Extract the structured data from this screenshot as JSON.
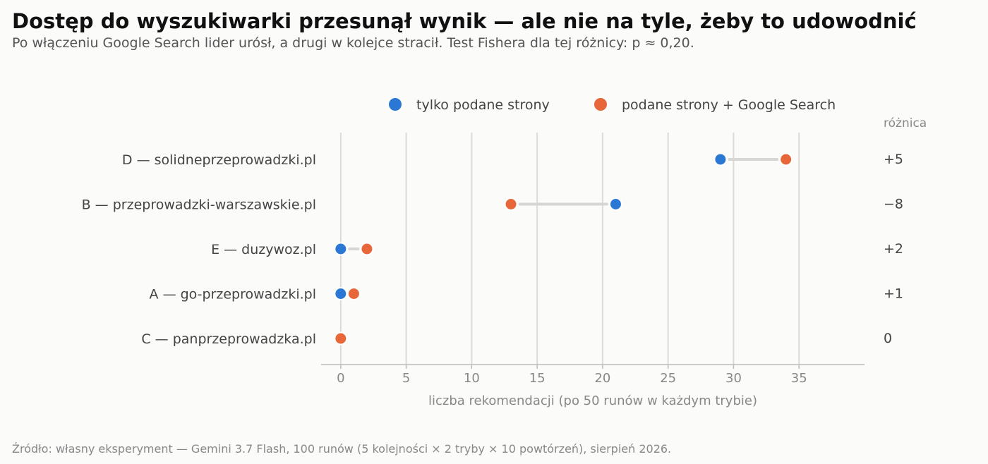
{
  "chart_data": {
    "type": "dumbbell",
    "title": "Dostęp do wyszukiwarki przesunął wynik — ale nie na tyle, żeby to udowodnić",
    "subtitle": "Po włączeniu Google Search lider urósł, a drugi w kolejce stracił. Test Fishera dla tej różnicy: p ≈ 0,20.",
    "xlabel": "liczba rekomendacji (po 50 runów w każdym trybie)",
    "xlim": [
      -1.5,
      40
    ],
    "xticks": [
      0,
      5,
      10,
      15,
      20,
      25,
      30,
      35
    ],
    "grid": true,
    "legend_position": "top-right",
    "series": [
      {
        "name": "tylko podane strony",
        "color": "#2b78d4"
      },
      {
        "name": "podane strony + Google Search",
        "color": "#e8673a"
      }
    ],
    "diff_header": "różnica",
    "categories": [
      {
        "label": "D — solidneprzeprowadzki.pl",
        "values": [
          29,
          34
        ],
        "diff": "+5"
      },
      {
        "label": "B — przeprowadzki-warszawskie.pl",
        "values": [
          21,
          13
        ],
        "diff": "−8"
      },
      {
        "label": "E — duzywoz.pl",
        "values": [
          0,
          2
        ],
        "diff": "+2"
      },
      {
        "label": "A — go-przeprowadzki.pl",
        "values": [
          0,
          1
        ],
        "diff": "+1"
      },
      {
        "label": "C — panprzeprowadzka.pl",
        "values": [
          0,
          0
        ],
        "diff": "0"
      }
    ]
  },
  "source": "Źródło: własny eksperyment — Gemini 3.7 Flash, 100 runów (5 kolejności × 2 tryby × 10 powtórzeń), sierpień 2026."
}
